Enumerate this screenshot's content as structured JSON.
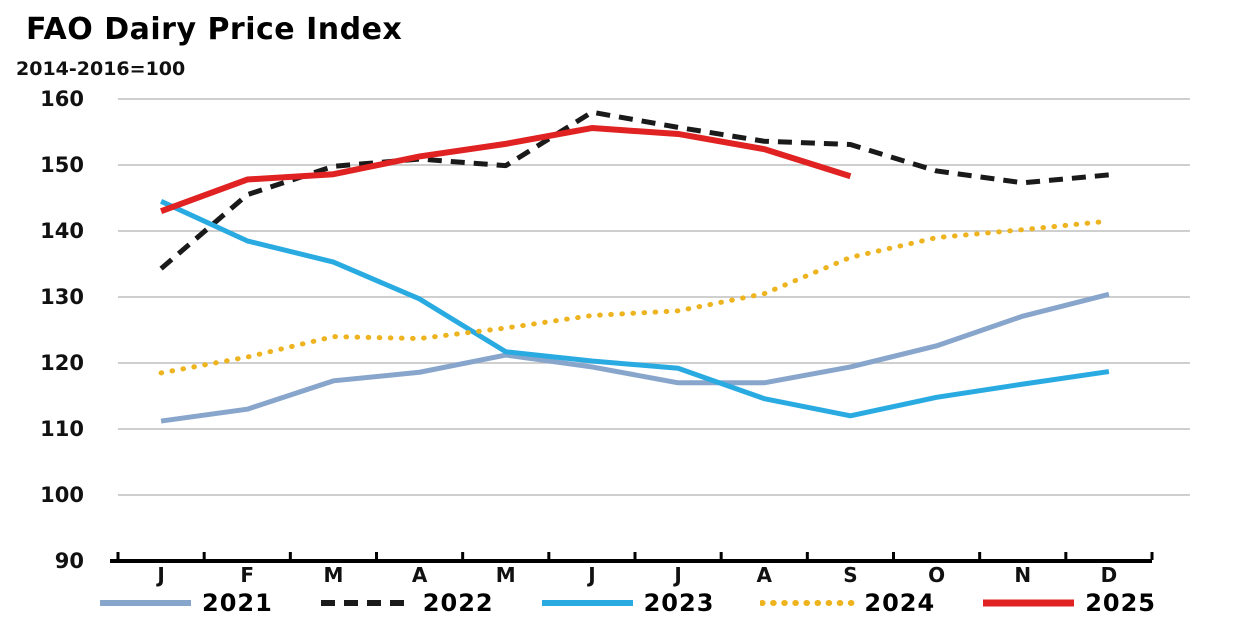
{
  "header": {
    "title": "FAO Dairy Price Index",
    "subtitle": "2014-2016=100"
  },
  "chart_data": {
    "type": "line",
    "title": "FAO Dairy Price Index",
    "subtitle": "2014-2016=100",
    "xlabel": "",
    "ylabel": "",
    "categories": [
      "J",
      "F",
      "M",
      "A",
      "M",
      "J",
      "J",
      "A",
      "S",
      "O",
      "N",
      "D"
    ],
    "ylim": [
      90,
      160
    ],
    "y_ticks": [
      90,
      100,
      110,
      120,
      130,
      140,
      150,
      160
    ],
    "grid": "horizontal",
    "legend_position": "bottom",
    "series": [
      {
        "name": "2021",
        "color": "#88A5CC",
        "style": "solid",
        "width": 5,
        "values": [
          111.2,
          113.0,
          117.3,
          118.6,
          121.2,
          119.4,
          117.0,
          117.0,
          119.4,
          122.6,
          127.1,
          130.4
        ]
      },
      {
        "name": "2022",
        "color": "#1A1A1A",
        "style": "dashed",
        "width": 5,
        "values": [
          134.3,
          145.5,
          149.8,
          150.9,
          149.9,
          158.0,
          155.7,
          153.6,
          153.1,
          149.1,
          147.3,
          148.5
        ]
      },
      {
        "name": "2023",
        "color": "#29ABE2",
        "style": "solid",
        "width": 5,
        "values": [
          144.5,
          138.5,
          135.3,
          129.7,
          121.7,
          120.3,
          119.2,
          114.6,
          112.0,
          114.8,
          116.8,
          118.7
        ]
      },
      {
        "name": "2024",
        "color": "#EDB41F",
        "style": "dotted",
        "width": 5,
        "values": [
          118.5,
          120.9,
          124.0,
          123.7,
          125.3,
          127.2,
          127.9,
          130.5,
          136.0,
          139.0,
          140.2,
          141.5
        ]
      },
      {
        "name": "2025",
        "color": "#E02222",
        "style": "solid",
        "width": 6,
        "values": [
          143.0,
          147.8,
          148.6,
          151.3,
          153.2,
          155.6,
          154.7,
          152.4,
          148.3
        ]
      }
    ]
  },
  "colors": {
    "background": "#FFFFFF",
    "grid": "#BFBFBF",
    "axis": "#000000",
    "tick_text": "#111111"
  }
}
